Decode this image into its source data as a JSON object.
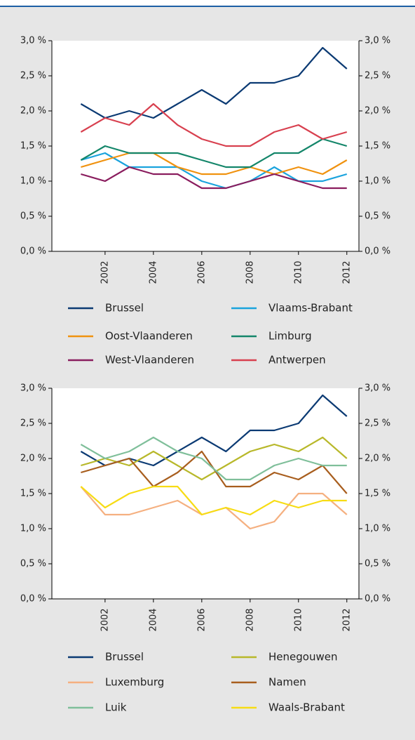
{
  "chart_data": [
    {
      "type": "line",
      "x": [
        2001,
        2002,
        2003,
        2004,
        2005,
        2006,
        2007,
        2008,
        2009,
        2010,
        2011,
        2012
      ],
      "xlim": [
        1999.8,
        2012.5
      ],
      "xticks": [
        2002,
        2004,
        2006,
        2008,
        2010,
        2012
      ],
      "ylim": [
        0,
        3
      ],
      "yticks": [
        {
          "value": 0,
          "label": "0,0 %"
        },
        {
          "value": 0.5,
          "label": "0,5 %"
        },
        {
          "value": 1,
          "label": "1,0 %"
        },
        {
          "value": 1.5,
          "label": "1,5 %"
        },
        {
          "value": 2,
          "label": "2,0 %"
        },
        {
          "value": 2.5,
          "label": "2,5 %"
        },
        {
          "value": 3,
          "label": "3,0 %"
        }
      ],
      "y2lim": [
        0,
        3
      ],
      "y2ticks": [
        {
          "value": 0,
          "label": "0,0 %"
        },
        {
          "value": 0.5,
          "label": "0,5 %"
        },
        {
          "value": 1,
          "label": "1,0 %"
        },
        {
          "value": 1.5,
          "label": "1,5 %"
        },
        {
          "value": 2,
          "label": "2,0 %"
        },
        {
          "value": 2.5,
          "label": "2,5 %"
        },
        {
          "value": 3,
          "label": "3,0 %"
        }
      ],
      "series": [
        {
          "name": "Brussel",
          "color": "#0b3a73",
          "values": [
            2.1,
            1.9,
            2.0,
            1.9,
            2.1,
            2.3,
            2.1,
            2.4,
            2.4,
            2.5,
            2.9,
            2.6
          ]
        },
        {
          "name": "Vlaams-Brabant",
          "color": "#1aa3dd",
          "values": [
            1.3,
            1.4,
            1.2,
            1.2,
            1.2,
            1.0,
            0.9,
            1.0,
            1.2,
            1.0,
            1.0,
            1.1
          ]
        },
        {
          "name": "Oost-Vlaanderen",
          "color": "#f0920f",
          "values": [
            1.2,
            1.3,
            1.4,
            1.4,
            1.2,
            1.1,
            1.1,
            1.2,
            1.1,
            1.2,
            1.1,
            1.3
          ]
        },
        {
          "name": "Limburg",
          "color": "#14866a",
          "values": [
            1.3,
            1.5,
            1.4,
            1.4,
            1.4,
            1.3,
            1.2,
            1.2,
            1.4,
            1.4,
            1.6,
            1.5
          ]
        },
        {
          "name": "West-Vlaanderen",
          "color": "#8a1d5e",
          "values": [
            1.1,
            1.0,
            1.2,
            1.1,
            1.1,
            0.9,
            0.9,
            1.0,
            1.1,
            1.0,
            0.9,
            0.9
          ]
        },
        {
          "name": "Antwerpen",
          "color": "#d8404f",
          "values": [
            1.7,
            1.9,
            1.8,
            2.1,
            1.8,
            1.6,
            1.5,
            1.5,
            1.7,
            1.8,
            1.6,
            1.7
          ]
        }
      ]
    },
    {
      "type": "line",
      "x": [
        2001,
        2002,
        2003,
        2004,
        2005,
        2006,
        2007,
        2008,
        2009,
        2010,
        2011,
        2012
      ],
      "xlim": [
        1999.8,
        2012.5
      ],
      "xticks": [
        2002,
        2004,
        2006,
        2008,
        2010,
        2012
      ],
      "ylim": [
        0,
        3
      ],
      "yticks": [
        {
          "value": 0,
          "label": "0,0 %"
        },
        {
          "value": 0.5,
          "label": "0,5 %"
        },
        {
          "value": 1,
          "label": "1,0 %"
        },
        {
          "value": 1.5,
          "label": "1,5 %"
        },
        {
          "value": 2,
          "label": "2,0 %"
        },
        {
          "value": 2.5,
          "label": "2,5 %"
        },
        {
          "value": 3,
          "label": "3,0 %"
        }
      ],
      "y2lim": [
        0,
        3
      ],
      "y2ticks": [
        {
          "value": 0,
          "label": "0,0 %"
        },
        {
          "value": 0.5,
          "label": "0,5 %"
        },
        {
          "value": 1,
          "label": "1,0 %"
        },
        {
          "value": 1.5,
          "label": "1,5 %"
        },
        {
          "value": 2,
          "label": "2,0 %"
        },
        {
          "value": 2.5,
          "label": "2,5 %"
        },
        {
          "value": 3,
          "label": "3,0 %"
        }
      ],
      "series": [
        {
          "name": "Brussel",
          "color": "#0b3a73",
          "values": [
            2.1,
            1.9,
            2.0,
            1.9,
            2.1,
            2.3,
            2.1,
            2.4,
            2.4,
            2.5,
            2.9,
            2.6
          ]
        },
        {
          "name": "Henegouwen",
          "color": "#b8b82a",
          "values": [
            1.9,
            2.0,
            1.9,
            2.1,
            1.9,
            1.7,
            1.9,
            2.1,
            2.2,
            2.1,
            2.3,
            2.0
          ]
        },
        {
          "name": "Luxemburg",
          "color": "#f5b080",
          "values": [
            1.6,
            1.2,
            1.2,
            1.3,
            1.4,
            1.2,
            1.3,
            1.0,
            1.1,
            1.5,
            1.5,
            1.2
          ]
        },
        {
          "name": "Namen",
          "color": "#a85e1e",
          "values": [
            1.8,
            1.9,
            2.0,
            1.6,
            1.8,
            2.1,
            1.6,
            1.6,
            1.8,
            1.7,
            1.9,
            1.5
          ]
        },
        {
          "name": "Luik",
          "color": "#7fbf9a",
          "values": [
            2.2,
            2.0,
            2.1,
            2.3,
            2.1,
            2.0,
            1.7,
            1.7,
            1.9,
            2.0,
            1.9,
            1.9
          ]
        },
        {
          "name": "Waals-Brabant",
          "color": "#f7dc14",
          "values": [
            1.6,
            1.3,
            1.5,
            1.6,
            1.6,
            1.2,
            1.3,
            1.2,
            1.4,
            1.3,
            1.4,
            1.4
          ]
        }
      ]
    }
  ]
}
